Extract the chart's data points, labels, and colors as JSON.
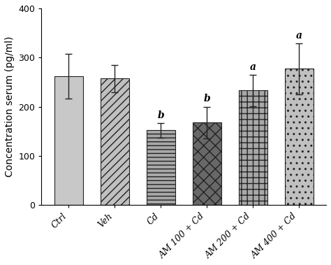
{
  "categories": [
    "Ctrl",
    "Veh",
    "Cd",
    "AM 100 + Cd",
    "AM 200 + Cd",
    "AM 400 + Cd"
  ],
  "values": [
    262,
    257,
    152,
    168,
    233,
    277
  ],
  "errors": [
    45,
    28,
    15,
    32,
    32,
    52
  ],
  "significance": [
    "",
    "",
    "b",
    "b",
    "a",
    "a"
  ],
  "ylabel": "Concentration serum (pg/ml)",
  "ylim": [
    0,
    400
  ],
  "yticks": [
    0,
    100,
    200,
    300,
    400
  ],
  "bar_colors": [
    "#c8c8c8",
    "#b8b8b8",
    "#a0a0a0",
    "#707070",
    "#aaaaaa",
    "#c0c0c0"
  ],
  "edge_color": "#222222",
  "sig_fontsize": 10,
  "label_fontsize": 10,
  "tick_fontsize": 9,
  "bar_width": 0.62
}
